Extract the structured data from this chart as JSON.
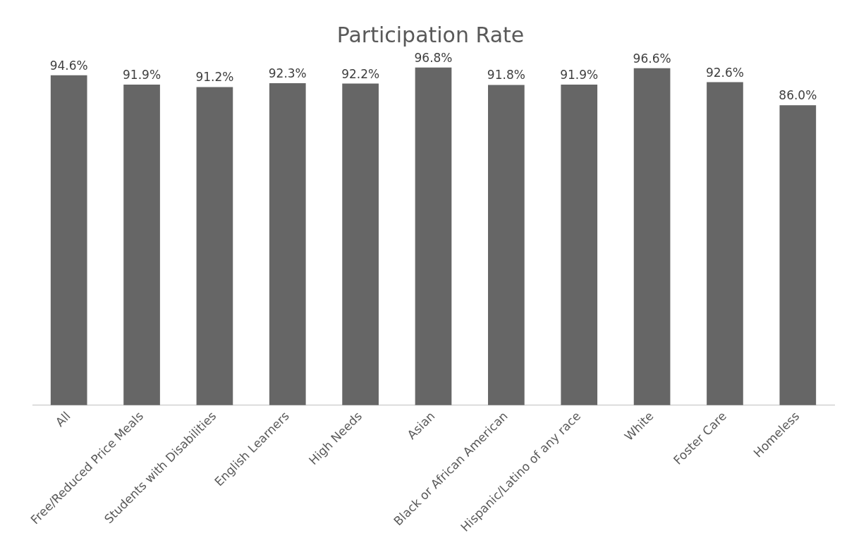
{
  "chart_data": {
    "type": "bar",
    "title": "Participation Rate",
    "categories": [
      "All",
      "Free/Reduced Price Meals",
      "Students with Disabilities",
      "English Learners",
      "High Needs",
      "Asian",
      "Black or African American",
      "Hispanic/Latino of any race",
      "White",
      "Foster Care",
      "Homeless"
    ],
    "values": [
      94.6,
      91.9,
      91.2,
      92.3,
      92.2,
      96.8,
      91.8,
      91.9,
      96.6,
      92.6,
      86.0
    ],
    "value_labels": [
      "94.6%",
      "91.9%",
      "91.2%",
      "92.3%",
      "92.2%",
      "96.8%",
      "91.8%",
      "91.9%",
      "96.6%",
      "92.6%",
      "86.0%"
    ],
    "color": "#666666",
    "tick_labels": "x",
    "grid": false,
    "legend": false
  }
}
